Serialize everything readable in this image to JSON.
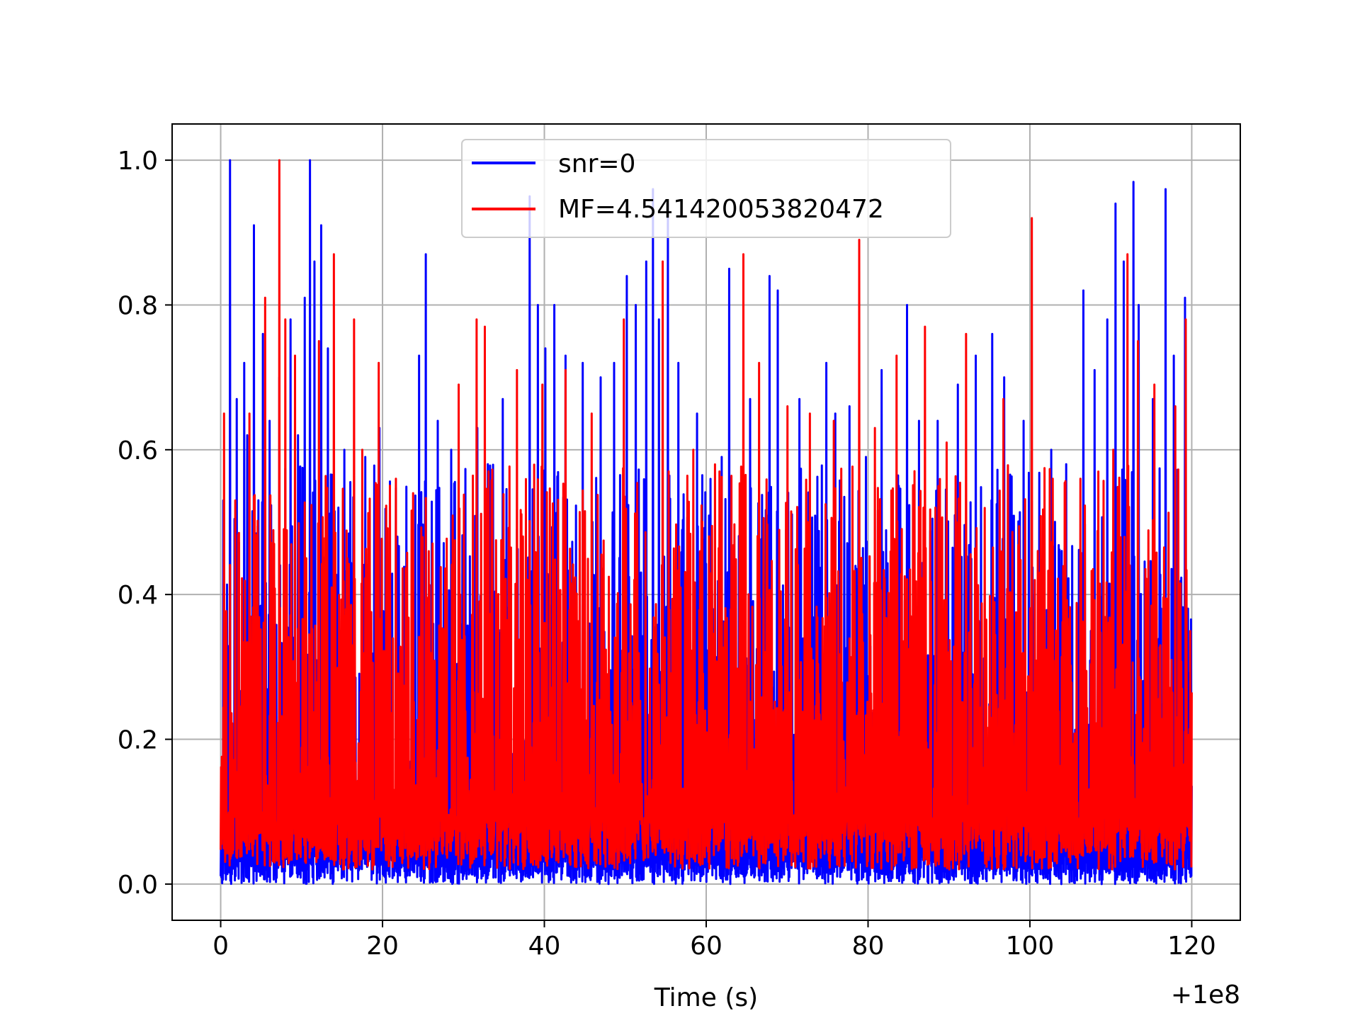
{
  "chart_data": {
    "type": "line",
    "title": "",
    "xlabel": "Time (s)",
    "ylabel": "",
    "x_offset_label": "+1e8",
    "xlim": [
      -6,
      126
    ],
    "ylim": [
      -0.05,
      1.05
    ],
    "x_ticks": [
      0,
      20,
      40,
      60,
      80,
      100,
      120
    ],
    "x_tick_labels": [
      "0",
      "20",
      "40",
      "60",
      "80",
      "100",
      "120"
    ],
    "y_ticks": [
      0.0,
      0.2,
      0.4,
      0.6,
      0.8,
      1.0
    ],
    "y_tick_labels": [
      "0.0",
      "0.2",
      "0.4",
      "0.6",
      "0.8",
      "1.0"
    ],
    "grid": true,
    "legend_position": "upper-center",
    "series": [
      {
        "name": "snr=0",
        "color": "#0000ff",
        "x_range": [
          0,
          120
        ],
        "floor_range": [
          0.0,
          0.04
        ],
        "peaks": [
          [
            0.3,
            0.53
          ],
          [
            1.1,
            1.0
          ],
          [
            2.0,
            0.67
          ],
          [
            2.9,
            0.72
          ],
          [
            3.3,
            0.62
          ],
          [
            4.1,
            0.91
          ],
          [
            5.2,
            0.76
          ],
          [
            6.0,
            0.64
          ],
          [
            7.2,
            0.7
          ],
          [
            8.6,
            0.78
          ],
          [
            9.5,
            0.62
          ],
          [
            10.4,
            0.81
          ],
          [
            11.0,
            1.0
          ],
          [
            11.6,
            0.86
          ],
          [
            12.4,
            0.91
          ],
          [
            13.2,
            0.74
          ],
          [
            14.5,
            0.52
          ],
          [
            15.3,
            0.6
          ],
          [
            17.8,
            0.59
          ],
          [
            19.6,
            0.63
          ],
          [
            21.8,
            0.48
          ],
          [
            24.5,
            0.73
          ],
          [
            25.3,
            0.87
          ],
          [
            26.8,
            0.64
          ],
          [
            28.5,
            0.6
          ],
          [
            31.7,
            0.63
          ],
          [
            33.0,
            0.58
          ],
          [
            34.8,
            0.67
          ],
          [
            38.2,
            0.95
          ],
          [
            39.2,
            0.8
          ],
          [
            40.1,
            0.74
          ],
          [
            41.2,
            0.8
          ],
          [
            42.6,
            0.73
          ],
          [
            44.7,
            0.72
          ],
          [
            46.9,
            0.7
          ],
          [
            48.6,
            0.72
          ],
          [
            50.2,
            0.84
          ],
          [
            51.3,
            0.8
          ],
          [
            52.6,
            0.86
          ],
          [
            53.4,
            0.96
          ],
          [
            54.1,
            0.78
          ],
          [
            55.2,
            0.94
          ],
          [
            56.5,
            0.72
          ],
          [
            58.8,
            0.65
          ],
          [
            61.9,
            0.59
          ],
          [
            62.8,
            0.85
          ],
          [
            65.4,
            0.67
          ],
          [
            67.8,
            0.84
          ],
          [
            68.8,
            0.82
          ],
          [
            71.5,
            0.67
          ],
          [
            74.8,
            0.72
          ],
          [
            75.9,
            0.65
          ],
          [
            77.7,
            0.66
          ],
          [
            79.7,
            0.59
          ],
          [
            81.7,
            0.71
          ],
          [
            84.8,
            0.8
          ],
          [
            86.3,
            0.64
          ],
          [
            88.6,
            0.64
          ],
          [
            91.1,
            0.69
          ],
          [
            93.3,
            0.73
          ],
          [
            95.3,
            0.76
          ],
          [
            96.8,
            0.7
          ],
          [
            99.2,
            0.64
          ],
          [
            102.6,
            0.6
          ],
          [
            104.5,
            0.58
          ],
          [
            106.6,
            0.82
          ],
          [
            108.0,
            0.71
          ],
          [
            109.5,
            0.78
          ],
          [
            110.6,
            0.94
          ],
          [
            111.6,
            0.86
          ],
          [
            112.8,
            0.97
          ],
          [
            113.4,
            0.8
          ],
          [
            115.2,
            0.67
          ],
          [
            116.7,
            0.96
          ],
          [
            117.8,
            0.73
          ],
          [
            119.1,
            0.81
          ]
        ]
      },
      {
        "name": "MF=4.541420053820472",
        "color": "#ff0000",
        "x_range": [
          0,
          120
        ],
        "floor_range": [
          0.02,
          0.1
        ],
        "peaks": [
          [
            0.4,
            0.65
          ],
          [
            1.8,
            0.53
          ],
          [
            3.5,
            0.65
          ],
          [
            5.5,
            0.81
          ],
          [
            6.6,
            0.47
          ],
          [
            7.2,
            1.0
          ],
          [
            8.0,
            0.78
          ],
          [
            9.2,
            0.73
          ],
          [
            12.1,
            0.75
          ],
          [
            14.0,
            0.87
          ],
          [
            15.6,
            0.45
          ],
          [
            16.5,
            0.78
          ],
          [
            17.5,
            0.6
          ],
          [
            19.5,
            0.72
          ],
          [
            21.6,
            0.56
          ],
          [
            23.8,
            0.54
          ],
          [
            29.4,
            0.69
          ],
          [
            31.6,
            0.78
          ],
          [
            32.6,
            0.77
          ],
          [
            36.6,
            0.71
          ],
          [
            39.7,
            0.69
          ],
          [
            42.6,
            0.71
          ],
          [
            45.8,
            0.65
          ],
          [
            49.8,
            0.78
          ],
          [
            54.6,
            0.86
          ],
          [
            58.4,
            0.6
          ],
          [
            61.6,
            0.57
          ],
          [
            64.6,
            0.87
          ],
          [
            66.5,
            0.72
          ],
          [
            70.0,
            0.66
          ],
          [
            72.8,
            0.65
          ],
          [
            75.7,
            0.64
          ],
          [
            78.9,
            0.89
          ],
          [
            80.8,
            0.63
          ],
          [
            83.5,
            0.73
          ],
          [
            87.0,
            0.77
          ],
          [
            89.7,
            0.61
          ],
          [
            92.1,
            0.76
          ],
          [
            96.7,
            0.67
          ],
          [
            100.2,
            0.92
          ],
          [
            102.8,
            0.56
          ],
          [
            106.2,
            0.56
          ],
          [
            110.3,
            0.6
          ],
          [
            112.0,
            0.87
          ],
          [
            113.3,
            0.75
          ],
          [
            115.4,
            0.69
          ],
          [
            117.9,
            0.66
          ],
          [
            119.2,
            0.78
          ]
        ]
      }
    ]
  }
}
